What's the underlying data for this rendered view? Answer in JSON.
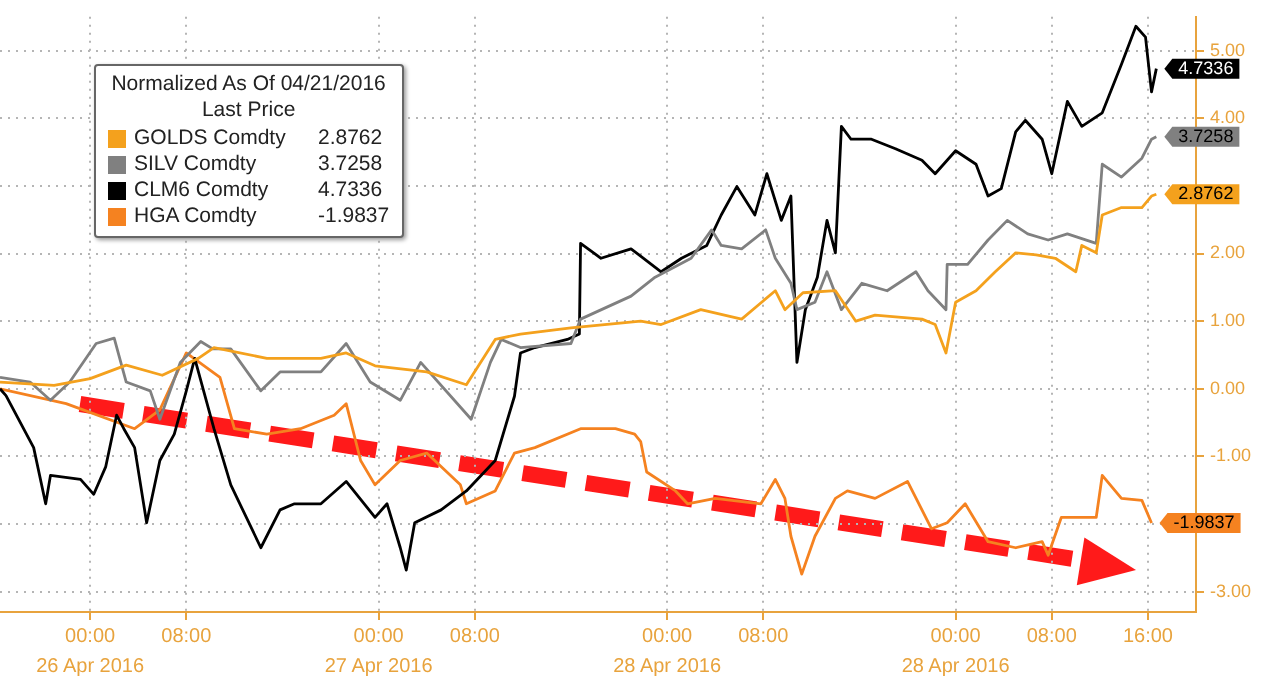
{
  "chart_data": {
    "type": "line",
    "legend_title": "Normalized As Of 04/21/2016\nLast Price",
    "legend": "top left",
    "grid": true,
    "xlim": [
      "2016-04-25T16:30",
      "2016-04-29T20:00"
    ],
    "ylim": [
      -3.3,
      5.5
    ],
    "annotations": [
      "26 Apr 2016",
      "27 Apr 2016",
      "28 Apr 2016",
      "28 Apr 2016"
    ],
    "xticks": [
      {
        "value": "2016-04-26T00:00",
        "label": "00:00"
      },
      {
        "value": "2016-04-26T08:00",
        "label": "08:00"
      },
      {
        "value": "2016-04-27T00:00",
        "label": "00:00"
      },
      {
        "value": "2016-04-27T08:00",
        "label": "08:00"
      },
      {
        "value": "2016-04-28T00:00",
        "label": "00:00"
      },
      {
        "value": "2016-04-28T08:00",
        "label": "08:00"
      },
      {
        "value": "2016-04-29T00:00",
        "label": "00:00"
      },
      {
        "value": "2016-04-29T08:00",
        "label": "08:00"
      },
      {
        "value": "2016-04-29T16:00",
        "label": "16:00"
      }
    ],
    "yticks": [
      {
        "value": -3,
        "label": "-3.00"
      },
      {
        "value": -2,
        "label": null
      },
      {
        "value": -1,
        "label": "-1.00"
      },
      {
        "value": 0,
        "label": "0.00"
      },
      {
        "value": 1,
        "label": "1.00"
      },
      {
        "value": 2,
        "label": "2.00"
      },
      {
        "value": 3,
        "label": null
      },
      {
        "value": 4,
        "label": "4.00"
      },
      {
        "value": 5,
        "label": "5.00"
      }
    ],
    "series": [
      {
        "name": "GOLDS Comdty",
        "color": "#f4a11d",
        "x": [
          "2016-04-25T16:30",
          "2016-04-25T21:00",
          "2016-04-26T00:00",
          "2016-04-26T03:00",
          "2016-04-26T06:00",
          "2016-04-26T09:00",
          "2016-04-26T10:18",
          "2016-04-26T14:42",
          "2016-04-26T19:12",
          "2016-04-26T21:18",
          "2016-04-26T23:42",
          "2016-04-27T04:00",
          "2016-04-27T07:18",
          "2016-04-27T09:42",
          "2016-04-27T11:48",
          "2016-04-27T16:00",
          "2016-04-27T21:48",
          "2016-04-27T23:30",
          "2016-04-28T02:48",
          "2016-04-28T06:12",
          "2016-04-28T09:00",
          "2016-04-28T09:48",
          "2016-04-28T11:18",
          "2016-04-28T14:00",
          "2016-04-28T15:42",
          "2016-04-28T17:18",
          "2016-04-28T21:12",
          "2016-04-28T22:18",
          "2016-04-28T23:12",
          "2016-04-29T00:00",
          "2016-04-29T01:42",
          "2016-04-29T03:18",
          "2016-04-29T05:00",
          "2016-04-29T06:42",
          "2016-04-29T08:18",
          "2016-04-29T10:00",
          "2016-04-29T10:30",
          "2016-04-29T11:42",
          "2016-04-29T12:12",
          "2016-04-29T13:48",
          "2016-04-29T15:30",
          "2016-04-29T16:18",
          "2016-04-29T16:42"
        ],
        "values": [
          0.1,
          0.05,
          0.15,
          0.35,
          0.2,
          0.45,
          0.61,
          0.45,
          0.45,
          0.53,
          0.34,
          0.25,
          0.06,
          0.73,
          0.81,
          0.9,
          1,
          0.95,
          1.17,
          1.03,
          1.45,
          1.17,
          1.42,
          1.45,
          1,
          1.09,
          1.03,
          0.95,
          0.53,
          1.28,
          1.45,
          1.73,
          2.01,
          1.98,
          1.93,
          1.73,
          2.12,
          2.01,
          2.57,
          2.68,
          2.68,
          2.85,
          2.8762
        ],
        "value_labels": [
          null,
          null,
          null,
          null,
          null,
          null,
          null,
          null,
          null,
          null,
          null,
          null,
          null,
          null,
          null,
          null,
          null,
          null,
          null,
          null,
          null,
          null,
          null,
          null,
          null,
          null,
          null,
          null,
          null,
          null,
          null,
          null,
          null,
          null,
          null,
          null,
          null,
          null,
          null,
          null,
          null,
          null,
          "2.8762"
        ]
      },
      {
        "name": "SILV Comdty",
        "color": "#808080",
        "x": [
          "2016-04-25T16:30",
          "2016-04-25T19:00",
          "2016-04-25T20:42",
          "2016-04-25T22:18",
          "2016-04-26T00:30",
          "2016-04-26T02:00",
          "2016-04-26T03:00",
          "2016-04-26T05:00",
          "2016-04-26T05:48",
          "2016-04-26T07:30",
          "2016-04-26T09:12",
          "2016-04-26T10:12",
          "2016-04-26T11:42",
          "2016-04-26T14:12",
          "2016-04-26T15:48",
          "2016-04-26T19:12",
          "2016-04-26T21:18",
          "2016-04-26T23:18",
          "2016-04-27T01:48",
          "2016-04-27T03:30",
          "2016-04-27T07:42",
          "2016-04-27T09:18",
          "2016-04-27T10:12",
          "2016-04-27T11:48",
          "2016-04-27T16:00",
          "2016-04-27T16:48",
          "2016-04-27T21:00",
          "2016-04-27T23:00",
          "2016-04-28T02:00",
          "2016-04-28T03:42",
          "2016-04-28T04:30",
          "2016-04-28T06:12",
          "2016-04-28T08:12",
          "2016-04-28T09:00",
          "2016-04-28T10:18",
          "2016-04-28T10:48",
          "2016-04-28T12:18",
          "2016-04-28T13:18",
          "2016-04-28T14:30",
          "2016-04-28T16:12",
          "2016-04-28T18:18",
          "2016-04-28T20:42",
          "2016-04-28T21:42",
          "2016-04-28T23:12",
          "2016-04-28T23:18",
          "2016-04-29T01:00",
          "2016-04-29T02:42",
          "2016-04-29T04:18",
          "2016-04-29T06:00",
          "2016-04-29T07:42",
          "2016-04-29T09:18",
          "2016-04-29T11:42",
          "2016-04-29T12:12",
          "2016-04-29T13:48",
          "2016-04-29T15:30",
          "2016-04-29T16:18",
          "2016-04-29T16:42"
        ],
        "values": [
          0.17,
          0.1,
          -0.17,
          0.1,
          0.67,
          0.75,
          0.1,
          -0.03,
          -0.45,
          0.39,
          0.7,
          0.59,
          0.59,
          -0.03,
          0.25,
          0.25,
          0.67,
          0.1,
          -0.17,
          0.39,
          -0.45,
          0.39,
          0.73,
          0.61,
          0.67,
          1.03,
          1.37,
          1.65,
          1.93,
          2.35,
          2.12,
          2.07,
          2.35,
          1.93,
          1.56,
          1.17,
          1.28,
          1.73,
          1.17,
          1.56,
          1.45,
          1.73,
          1.45,
          1.17,
          1.84,
          1.84,
          2.2,
          2.49,
          2.29,
          2.2,
          2.29,
          2.15,
          3.32,
          3.13,
          3.41,
          3.69,
          3.7258
        ],
        "value_labels": [
          null,
          null,
          null,
          null,
          null,
          null,
          null,
          null,
          null,
          null,
          null,
          null,
          null,
          null,
          null,
          null,
          null,
          null,
          null,
          null,
          null,
          null,
          null,
          null,
          null,
          null,
          null,
          null,
          null,
          null,
          null,
          null,
          null,
          null,
          null,
          null,
          null,
          null,
          null,
          null,
          null,
          null,
          null,
          null,
          null,
          null,
          null,
          null,
          null,
          null,
          null,
          null,
          null,
          null,
          null,
          null,
          "3.7258"
        ]
      },
      {
        "name": "CLM6 Comdty",
        "color": "#000000",
        "x": [
          "2016-04-25T16:30",
          "2016-04-25T17:00",
          "2016-04-25T19:18",
          "2016-04-25T20:18",
          "2016-04-25T20:42",
          "2016-04-25T23:12",
          "2016-04-26T00:18",
          "2016-04-26T01:18",
          "2016-04-26T02:12",
          "2016-04-26T02:48",
          "2016-04-26T03:42",
          "2016-04-26T04:42",
          "2016-04-26T05:48",
          "2016-04-26T07:00",
          "2016-04-26T08:00",
          "2016-04-26T08:42",
          "2016-04-26T10:18",
          "2016-04-26T11:42",
          "2016-04-26T14:12",
          "2016-04-26T15:48",
          "2016-04-26T17:00",
          "2016-04-26T19:12",
          "2016-04-26T21:18",
          "2016-04-26T23:42",
          "2016-04-27T00:42",
          "2016-04-27T01:48",
          "2016-04-27T02:18",
          "2016-04-27T03:00",
          "2016-04-27T05:12",
          "2016-04-27T07:18",
          "2016-04-27T09:42",
          "2016-04-27T11:18",
          "2016-04-27T11:48",
          "2016-04-27T13:00",
          "2016-04-27T15:42",
          "2016-04-27T16:42",
          "2016-04-27T16:48",
          "2016-04-27T18:30",
          "2016-04-27T21:00",
          "2016-04-27T23:30",
          "2016-04-28T01:12",
          "2016-04-28T03:18",
          "2016-04-28T04:30",
          "2016-04-28T05:48",
          "2016-04-28T07:18",
          "2016-04-28T08:18",
          "2016-04-28T09:30",
          "2016-04-28T10:18",
          "2016-04-28T10:48",
          "2016-04-28T11:30",
          "2016-04-28T12:30",
          "2016-04-28T13:18",
          "2016-04-28T14:00",
          "2016-04-28T14:30",
          "2016-04-28T15:18",
          "2016-04-28T17:00",
          "2016-04-28T19:00",
          "2016-04-28T21:12",
          "2016-04-28T22:18",
          "2016-04-29T00:00",
          "2016-04-29T01:42",
          "2016-04-29T02:42",
          "2016-04-29T03:48",
          "2016-04-29T05:00",
          "2016-04-29T05:48",
          "2016-04-29T07:12",
          "2016-04-29T08:00",
          "2016-04-29T09:18",
          "2016-04-29T10:30",
          "2016-04-29T12:12",
          "2016-04-29T13:48",
          "2016-04-29T15:00",
          "2016-04-29T15:48",
          "2016-04-29T16:18",
          "2016-04-29T16:42"
        ],
        "values": [
          0,
          -0.1,
          -0.87,
          -1.7,
          -1.28,
          -1.34,
          -1.56,
          -1.15,
          -0.39,
          -0.59,
          -0.87,
          -1.98,
          -1.06,
          -0.67,
          -0.03,
          0.45,
          -0.59,
          -1.42,
          -2.35,
          -1.79,
          -1.7,
          -1.7,
          -1.37,
          -1.9,
          -1.7,
          -2.35,
          -2.68,
          -1.98,
          -1.79,
          -1.51,
          -1.06,
          -0.11,
          0.53,
          0.61,
          0.73,
          0.81,
          2.15,
          1.93,
          2.07,
          1.73,
          1.93,
          2.12,
          2.57,
          2.99,
          2.57,
          3.18,
          2.49,
          2.85,
          0.39,
          1.17,
          1.65,
          2.49,
          2.01,
          3.88,
          3.69,
          3.69,
          3.55,
          3.38,
          3.18,
          3.52,
          3.32,
          2.85,
          2.96,
          3.8,
          3.97,
          3.69,
          3.18,
          4.25,
          3.88,
          4.08,
          4.8,
          5.36,
          5.2,
          4.39,
          4.7336
        ],
        "value_labels": [
          null,
          null,
          null,
          null,
          null,
          null,
          null,
          null,
          null,
          null,
          null,
          null,
          null,
          null,
          null,
          null,
          null,
          null,
          null,
          null,
          null,
          null,
          null,
          null,
          null,
          null,
          null,
          null,
          null,
          null,
          null,
          null,
          null,
          null,
          null,
          null,
          null,
          null,
          null,
          null,
          null,
          null,
          null,
          null,
          null,
          null,
          null,
          null,
          null,
          null,
          null,
          null,
          null,
          null,
          null,
          null,
          null,
          null,
          null,
          null,
          null,
          null,
          null,
          null,
          null,
          null,
          null,
          null,
          null,
          null,
          null,
          null,
          null,
          null,
          "4.7336"
        ]
      },
      {
        "name": "HGA Comdty",
        "color": "#f58220",
        "x": [
          "2016-04-25T16:30",
          "2016-04-25T22:00",
          "2016-04-26T03:42",
          "2016-04-26T05:48",
          "2016-04-26T08:00",
          "2016-04-26T10:48",
          "2016-04-26T12:00",
          "2016-04-26T14:42",
          "2016-04-26T17:30",
          "2016-04-26T20:18",
          "2016-04-26T21:18",
          "2016-04-26T22:30",
          "2016-04-26T23:42",
          "2016-04-27T01:48",
          "2016-04-27T04:00",
          "2016-04-27T06:48",
          "2016-04-27T07:18",
          "2016-04-27T09:42",
          "2016-04-27T11:18",
          "2016-04-27T13:00",
          "2016-04-27T16:48",
          "2016-04-27T19:42",
          "2016-04-27T21:18",
          "2016-04-27T21:48",
          "2016-04-27T22:18",
          "2016-04-28T00:42",
          "2016-04-28T01:42",
          "2016-04-28T04:00",
          "2016-04-28T07:48",
          "2016-04-28T09:00",
          "2016-04-28T09:48",
          "2016-04-28T10:18",
          "2016-04-28T11:12",
          "2016-04-28T12:18",
          "2016-04-28T14:00",
          "2016-04-28T15:00",
          "2016-04-28T17:18",
          "2016-04-28T20:00",
          "2016-04-28T22:00",
          "2016-04-28T23:18",
          "2016-04-29T00:48",
          "2016-04-29T02:42",
          "2016-04-29T05:00",
          "2016-04-29T07:12",
          "2016-04-29T07:42",
          "2016-04-29T08:48",
          "2016-04-29T11:42",
          "2016-04-29T12:12",
          "2016-04-29T13:48",
          "2016-04-29T15:30",
          "2016-04-29T16:18"
        ],
        "values": [
          0,
          -0.22,
          -0.59,
          -0.31,
          0.53,
          0.17,
          -0.59,
          -0.67,
          -0.59,
          -0.39,
          -0.22,
          -1.06,
          -1.42,
          -1.06,
          -0.95,
          -1.42,
          -1.7,
          -1.51,
          -0.95,
          -0.87,
          -0.59,
          -0.59,
          -0.67,
          -0.78,
          -1.23,
          -1.51,
          -1.7,
          -1.62,
          -1.7,
          -1.34,
          -1.62,
          -2.18,
          -2.74,
          -2.18,
          -1.62,
          -1.51,
          -1.62,
          -1.37,
          -2.07,
          -1.98,
          -1.7,
          -2.26,
          -2.35,
          -2.26,
          -2.46,
          -1.9,
          -1.9,
          -1.28,
          -1.62,
          -1.65,
          -1.9837
        ],
        "value_labels": [
          null,
          null,
          null,
          null,
          null,
          null,
          null,
          null,
          null,
          null,
          null,
          null,
          null,
          null,
          null,
          null,
          null,
          null,
          null,
          null,
          null,
          null,
          null,
          null,
          null,
          null,
          null,
          null,
          null,
          null,
          null,
          null,
          null,
          null,
          null,
          null,
          null,
          null,
          null,
          null,
          null,
          null,
          null,
          null,
          null,
          null,
          null,
          null,
          null,
          null,
          "-1.9837"
        ]
      }
    ]
  }
}
